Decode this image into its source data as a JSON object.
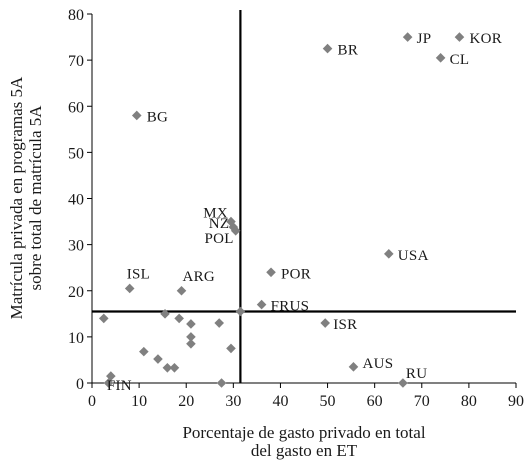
{
  "chart_data": {
    "type": "scatter",
    "title": "",
    "xlabel_lines": [
      "Porcentaje de gasto privado en total",
      "del gasto en ET"
    ],
    "ylabel_lines": [
      "Matrícula privada en programas 5A",
      "sobre total de matrícula 5A"
    ],
    "xlim": [
      0,
      90
    ],
    "ylim": [
      0,
      80
    ],
    "xticks": [
      0,
      10,
      20,
      30,
      40,
      50,
      60,
      70,
      80,
      90
    ],
    "yticks": [
      0,
      10,
      20,
      30,
      40,
      50,
      60,
      70,
      80
    ],
    "reference_lines": {
      "x": 31.5,
      "y": 15.5
    },
    "grid": false,
    "marker": {
      "shape": "diamond",
      "color": "#808080"
    },
    "axis_color": "#000000",
    "points": [
      {
        "x": 78,
        "y": 75,
        "label": "KOR"
      },
      {
        "x": 67,
        "y": 75,
        "label": "JP"
      },
      {
        "x": 50,
        "y": 72.5,
        "label": "BR"
      },
      {
        "x": 74,
        "y": 70.5,
        "label": "CL"
      },
      {
        "x": 9.5,
        "y": 58,
        "label": "BG"
      },
      {
        "x": 29.5,
        "y": 35,
        "label": "MX"
      },
      {
        "x": 30,
        "y": 33.8,
        "label": "NZ"
      },
      {
        "x": 30.5,
        "y": 33,
        "label": "POL"
      },
      {
        "x": 63,
        "y": 28,
        "label": "USA"
      },
      {
        "x": 38,
        "y": 24,
        "label": "POR"
      },
      {
        "x": 8,
        "y": 20.5,
        "label": "ISL"
      },
      {
        "x": 19,
        "y": 20,
        "label": "ARG"
      },
      {
        "x": 36,
        "y": 17,
        "label": "FRUS"
      },
      {
        "x": 49.5,
        "y": 13,
        "label": "ISR"
      },
      {
        "x": 55.5,
        "y": 3.5,
        "label": "AUS"
      },
      {
        "x": 66,
        "y": 0,
        "label": "RU"
      },
      {
        "x": 4,
        "y": 1.5,
        "label": "FIN"
      },
      {
        "x": 2.5,
        "y": 14,
        "label": ""
      },
      {
        "x": 15.5,
        "y": 15,
        "label": ""
      },
      {
        "x": 18.5,
        "y": 14,
        "label": ""
      },
      {
        "x": 21,
        "y": 12.8,
        "label": ""
      },
      {
        "x": 27,
        "y": 13,
        "label": ""
      },
      {
        "x": 31.5,
        "y": 15.5,
        "label": ""
      },
      {
        "x": 11,
        "y": 6.8,
        "label": ""
      },
      {
        "x": 21,
        "y": 10,
        "label": ""
      },
      {
        "x": 21,
        "y": 8.5,
        "label": ""
      },
      {
        "x": 14,
        "y": 5.2,
        "label": ""
      },
      {
        "x": 16,
        "y": 3.3,
        "label": ""
      },
      {
        "x": 17.5,
        "y": 3.3,
        "label": ""
      },
      {
        "x": 29.5,
        "y": 7.5,
        "label": ""
      },
      {
        "x": 27.5,
        "y": 0,
        "label": ""
      },
      {
        "x": 3.5,
        "y": 0,
        "label": ""
      }
    ]
  }
}
